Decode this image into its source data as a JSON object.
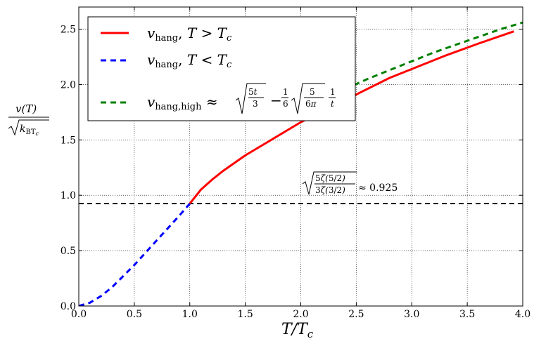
{
  "chart_data": {
    "type": "line",
    "xlabel": "T/T_c",
    "ylabel_num": "v(T)",
    "ylabel_den": "k_BT_c",
    "xlim": [
      0.0,
      4.0
    ],
    "ylim": [
      0.0,
      2.7
    ],
    "grid": true,
    "legend_position": "top-left",
    "x_ticks": [
      "0.0",
      "0.5",
      "1.0",
      "1.5",
      "2.0",
      "2.5",
      "3.0",
      "3.5",
      "4.0"
    ],
    "y_ticks": [
      "0.0",
      "0.5",
      "1.0",
      "1.5",
      "2.0",
      "2.5"
    ],
    "series": [
      {
        "name": "v_hang, T > T_c",
        "style": "solid",
        "color": "#ff0000",
        "x": [
          1.0,
          1.1,
          1.2,
          1.3,
          1.5,
          1.7,
          2.0,
          2.2,
          2.5,
          2.8,
          3.0,
          3.3,
          3.6,
          3.92
        ],
        "y": [
          0.925,
          1.05,
          1.14,
          1.22,
          1.36,
          1.48,
          1.66,
          1.76,
          1.91,
          2.06,
          2.14,
          2.26,
          2.37,
          2.48
        ]
      },
      {
        "name": "v_hang, T < T_c",
        "style": "dashed",
        "color": "#0000ff",
        "x": [
          0.0,
          0.1,
          0.2,
          0.3,
          0.4,
          0.5,
          0.6,
          0.7,
          0.8,
          0.9,
          1.0
        ],
        "y": [
          0.0,
          0.03,
          0.09,
          0.17,
          0.27,
          0.37,
          0.48,
          0.59,
          0.7,
          0.81,
          0.925
        ]
      },
      {
        "name": "v_hang,high ≈ √(5t/3) − (1/6)√(5/6π)(1/t)",
        "style": "dashed",
        "color": "#008000",
        "x": [
          2.4,
          2.6,
          2.8,
          3.0,
          3.2,
          3.4,
          3.6,
          3.8,
          4.0
        ],
        "y": [
          1.96,
          2.05,
          2.13,
          2.21,
          2.29,
          2.36,
          2.43,
          2.5,
          2.56
        ]
      }
    ],
    "reference_line": {
      "y": 0.925,
      "color": "#000000",
      "style": "dashed"
    },
    "annotation": {
      "text": "≈ 0.925",
      "x": 2.0,
      "y": 1.02
    }
  }
}
